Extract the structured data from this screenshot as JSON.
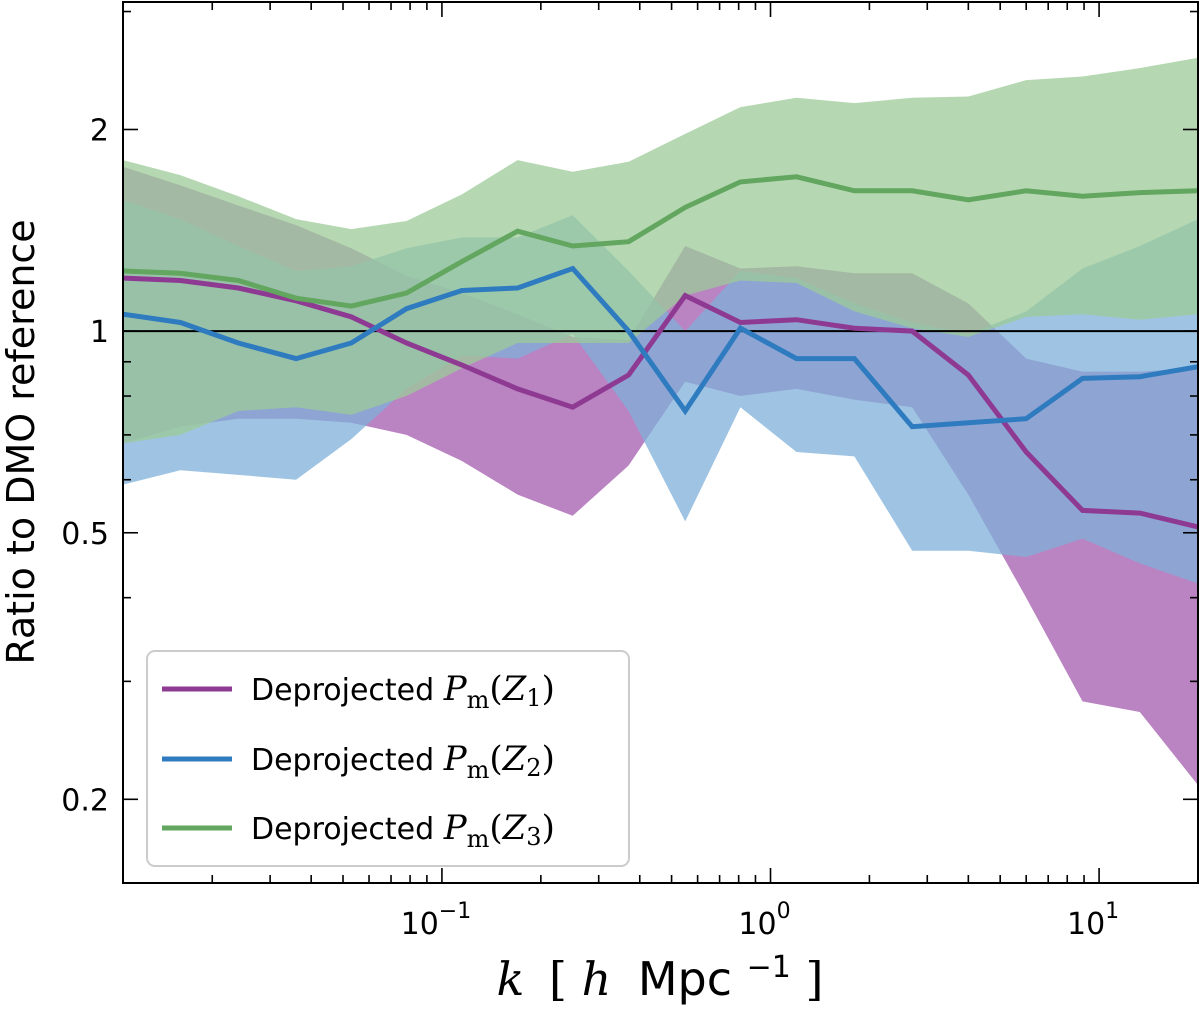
{
  "chart_data": {
    "type": "line",
    "xlabel_var": "k",
    "xlabel_unit_pre": "[",
    "xlabel_h": "h",
    "xlabel_unit": "Mpc",
    "xlabel_exp": "−1",
    "xlabel_post": "]",
    "ylabel": "Ratio to DMO reference",
    "x_scale": "log",
    "y_scale": "log",
    "xlim": [
      0.0107,
      20
    ],
    "ylim": [
      0.15,
      3.1
    ],
    "x_ticks": [
      {
        "value": 0.1,
        "base": "10",
        "exp": "−1"
      },
      {
        "value": 1,
        "base": "10",
        "exp": "0"
      },
      {
        "value": 10,
        "base": "10",
        "exp": "1"
      }
    ],
    "y_ticks": [
      {
        "value": 0.2,
        "label": "0.2"
      },
      {
        "value": 0.5,
        "label": "0.5"
      },
      {
        "value": 1,
        "label": "1"
      },
      {
        "value": 2,
        "label": "2"
      }
    ],
    "reference_line": 1,
    "grid": false,
    "legend_position": "lower-left",
    "x": [
      0.0107,
      0.016,
      0.024,
      0.036,
      0.053,
      0.078,
      0.115,
      0.17,
      0.25,
      0.37,
      0.55,
      0.81,
      1.2,
      1.8,
      2.7,
      4.0,
      6.0,
      8.9,
      13.3,
      20
    ],
    "series": [
      {
        "name": "Deprojected",
        "sym_P": "P",
        "sym_sub": "m",
        "sym_Z": "Z",
        "sym_idx": "1",
        "color": "#8e3a93",
        "band_color": "#a35aad",
        "values": [
          1.2,
          1.19,
          1.16,
          1.11,
          1.05,
          0.96,
          0.89,
          0.82,
          0.77,
          0.86,
          1.13,
          1.03,
          1.04,
          1.01,
          1.0,
          0.86,
          0.66,
          0.54,
          0.535,
          0.51
        ],
        "upper": [
          1.76,
          1.65,
          1.54,
          1.44,
          1.33,
          1.21,
          1.14,
          1.06,
          0.98,
          0.97,
          1.34,
          1.24,
          1.25,
          1.22,
          1.22,
          1.1,
          0.91,
          0.87,
          0.87,
          0.88
        ],
        "lower": [
          0.68,
          0.72,
          0.74,
          0.74,
          0.73,
          0.7,
          0.64,
          0.57,
          0.53,
          0.63,
          0.84,
          0.8,
          0.82,
          0.79,
          0.77,
          0.57,
          0.4,
          0.28,
          0.27,
          0.21
        ]
      },
      {
        "name": "Deprojected",
        "sym_P": "P",
        "sym_sub": "m",
        "sym_Z": "Z",
        "sym_idx": "2",
        "color": "#2f7bbf",
        "band_color": "#7fb0d9",
        "values": [
          1.06,
          1.03,
          0.96,
          0.91,
          0.96,
          1.08,
          1.15,
          1.16,
          1.24,
          1.0,
          0.76,
          1.01,
          0.91,
          0.91,
          0.72,
          0.73,
          0.74,
          0.85,
          0.855,
          0.885
        ],
        "upper": [
          1.57,
          1.47,
          1.34,
          1.23,
          1.25,
          1.33,
          1.38,
          1.38,
          1.49,
          1.23,
          1.0,
          1.23,
          1.2,
          1.1,
          1.03,
          0.99,
          1.07,
          1.24,
          1.34,
          1.47
        ],
        "lower": [
          0.59,
          0.62,
          0.61,
          0.6,
          0.69,
          0.82,
          0.92,
          0.91,
          0.99,
          0.76,
          0.52,
          0.77,
          0.66,
          0.65,
          0.47,
          0.47,
          0.46,
          0.49,
          0.45,
          0.42
        ]
      },
      {
        "name": "Deprojected",
        "sym_P": "P",
        "sym_sub": "m",
        "sym_Z": "Z",
        "sym_idx": "3",
        "color": "#62a65f",
        "band_color": "#9ccb98",
        "values": [
          1.23,
          1.22,
          1.19,
          1.12,
          1.09,
          1.14,
          1.27,
          1.41,
          1.34,
          1.36,
          1.53,
          1.67,
          1.7,
          1.62,
          1.62,
          1.57,
          1.62,
          1.59,
          1.61,
          1.62
        ],
        "upper": [
          1.8,
          1.71,
          1.59,
          1.47,
          1.42,
          1.46,
          1.6,
          1.8,
          1.73,
          1.79,
          1.97,
          2.16,
          2.23,
          2.19,
          2.23,
          2.24,
          2.37,
          2.4,
          2.47,
          2.56
        ],
        "lower": [
          0.68,
          0.7,
          0.76,
          0.77,
          0.75,
          0.8,
          0.88,
          0.96,
          0.96,
          0.96,
          1.13,
          1.19,
          1.18,
          1.07,
          1.01,
          0.98,
          1.05,
          1.06,
          1.04,
          1.06
        ]
      }
    ]
  }
}
